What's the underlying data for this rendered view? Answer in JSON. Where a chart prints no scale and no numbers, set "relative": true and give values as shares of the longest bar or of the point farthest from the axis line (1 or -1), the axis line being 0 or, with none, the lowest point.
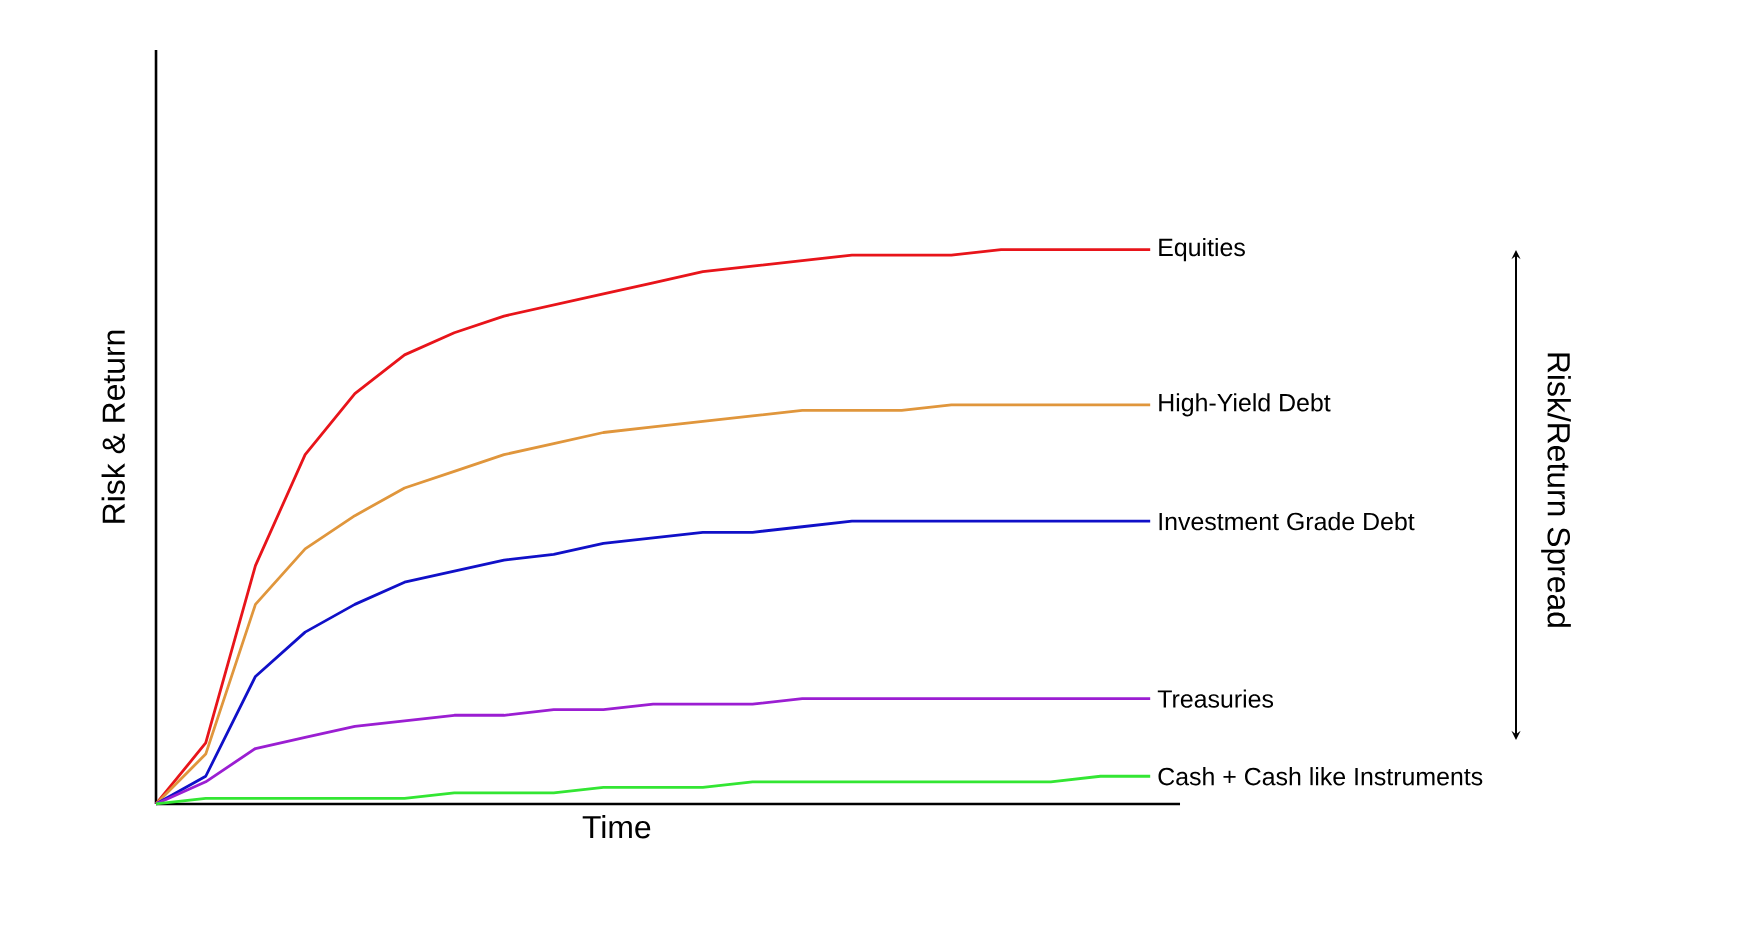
{
  "chart_data": {
    "type": "line",
    "relative": true,
    "xlabel": "Time",
    "ylabel": "Risk & Return",
    "categories": [
      null,
      null,
      null,
      null,
      null,
      null,
      null,
      null,
      null,
      null,
      null,
      null,
      null,
      null,
      null,
      null,
      null,
      null,
      null,
      null,
      null
    ],
    "series": [
      {
        "name": "Equities",
        "color": "#e8141a",
        "values": [
          0,
          0.11,
          0.43,
          0.63,
          0.74,
          0.81,
          0.85,
          0.88,
          0.9,
          0.92,
          0.94,
          0.96,
          0.97,
          0.98,
          0.99,
          0.99,
          0.99,
          1,
          1,
          1,
          1
        ]
      },
      {
        "name": "High-Yield Debt",
        "color": "#e0963c",
        "values": [
          0,
          0.09,
          0.36,
          0.46,
          0.52,
          0.57,
          0.6,
          0.63,
          0.65,
          0.67,
          0.68,
          0.69,
          0.7,
          0.71,
          0.71,
          0.71,
          0.72,
          0.72,
          0.72,
          0.72,
          0.72
        ]
      },
      {
        "name": "Investment Grade Debt",
        "color": "#1010c8",
        "values": [
          0,
          0.05,
          0.23,
          0.31,
          0.36,
          0.4,
          0.42,
          0.44,
          0.45,
          0.47,
          0.48,
          0.49,
          0.49,
          0.5,
          0.51,
          0.51,
          0.51,
          0.51,
          0.51,
          0.51,
          0.51
        ]
      },
      {
        "name": "Treasuries",
        "color": "#9b1ed2",
        "values": [
          0,
          0.04,
          0.1,
          0.12,
          0.14,
          0.15,
          0.16,
          0.16,
          0.17,
          0.17,
          0.18,
          0.18,
          0.18,
          0.19,
          0.19,
          0.19,
          0.19,
          0.19,
          0.19,
          0.19,
          0.19
        ]
      },
      {
        "name": "Cash + Cash like Instruments",
        "color": "#33e633",
        "values": [
          0,
          0.01,
          0.01,
          0.01,
          0.01,
          0.01,
          0.02,
          0.02,
          0.02,
          0.03,
          0.03,
          0.03,
          0.04,
          0.04,
          0.04,
          0.04,
          0.04,
          0.04,
          0.04,
          0.05,
          0.05
        ]
      }
    ],
    "annotations": [
      "Risk/Return Spread"
    ]
  }
}
